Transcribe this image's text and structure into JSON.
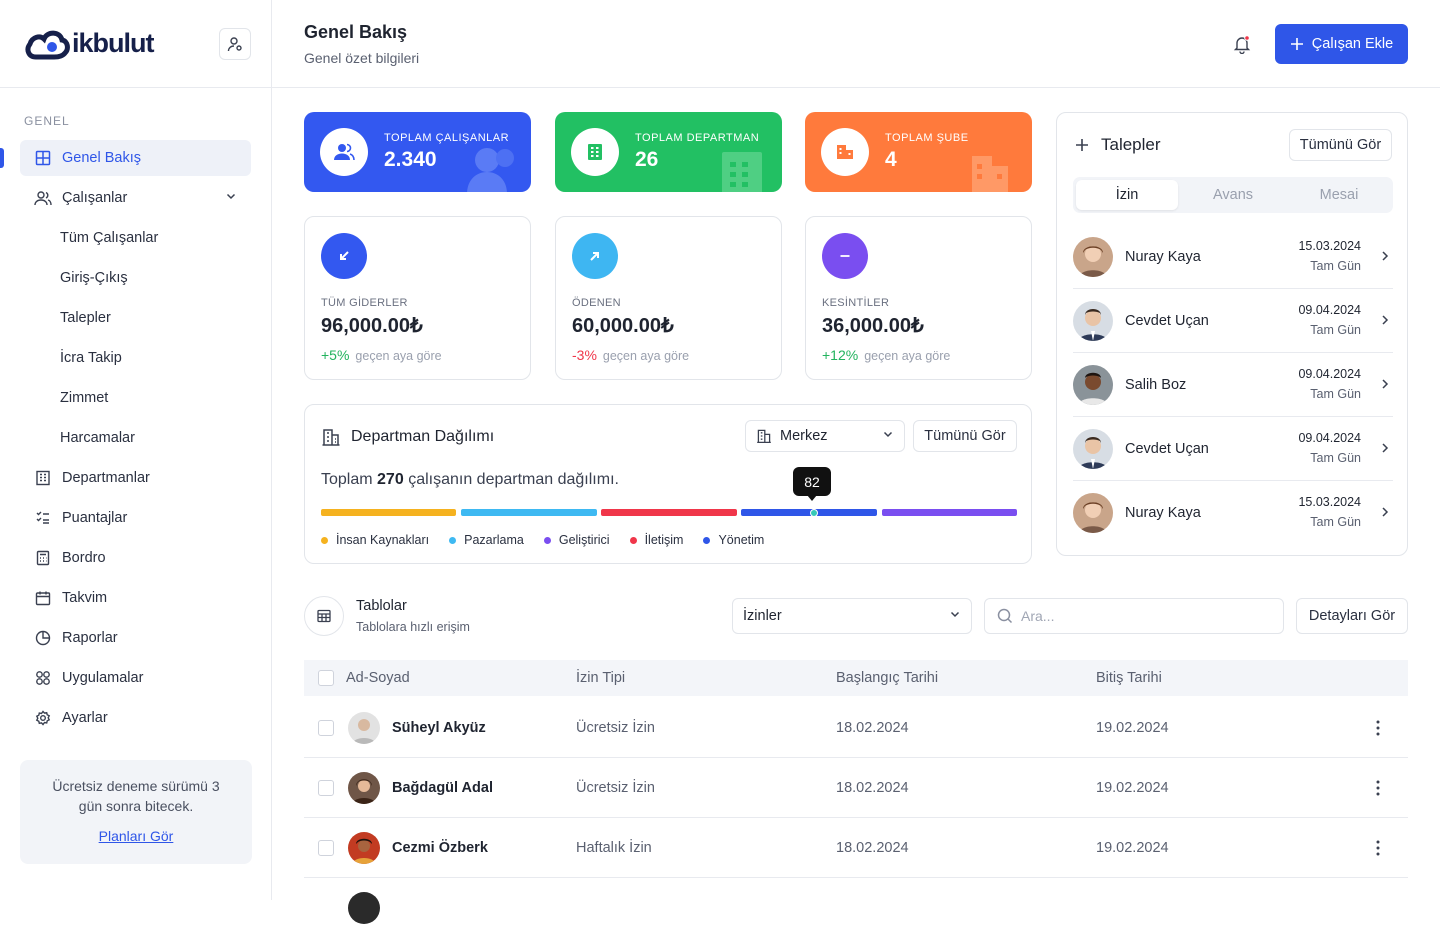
{
  "brand": {
    "name": "ikbulut"
  },
  "sidebar": {
    "section": "GENEL",
    "items": [
      {
        "label": "Genel Bakış"
      },
      {
        "label": "Çalışanlar"
      },
      {
        "label": "Departmanlar"
      },
      {
        "label": "Puantajlar"
      },
      {
        "label": "Bordro"
      },
      {
        "label": "Takvim"
      },
      {
        "label": "Raporlar"
      },
      {
        "label": "Uygulamalar"
      },
      {
        "label": "Ayarlar"
      }
    ],
    "subitems": [
      {
        "label": "Tüm Çalışanlar"
      },
      {
        "label": "Giriş-Çıkış"
      },
      {
        "label": "Talepler"
      },
      {
        "label": "İcra Takip"
      },
      {
        "label": "Zimmet"
      },
      {
        "label": "Harcamalar"
      }
    ],
    "trial": {
      "text": "Ücretsiz deneme sürümü 3 gün sonra bitecek.",
      "link": "Planları Gör"
    }
  },
  "header": {
    "title": "Genel Bakış",
    "subtitle": "Genel özet bilgileri",
    "add_button": "Çalışan Ekle"
  },
  "stats": [
    {
      "label": "TOPLAM ÇALIŞANLAR",
      "value": "2.340",
      "color": "#3358f0"
    },
    {
      "label": "TOPLAM DEPARTMAN",
      "value": "26",
      "color": "#22c063"
    },
    {
      "label": "TOPLAM ŞUBE",
      "value": "4",
      "color": "#ff7a3c"
    }
  ],
  "finance": [
    {
      "label": "TÜM GİDERLER",
      "value": "96,000.00₺",
      "change": "+5%",
      "note": "geçen aya göre",
      "color": "#3358f0"
    },
    {
      "label": "ÖDENEN",
      "value": "60,000.00₺",
      "change": "-3%",
      "note": "geçen aya göre",
      "color": "#3eb6f2"
    },
    {
      "label": "KESİNTİLER",
      "value": "36,000.00₺",
      "change": "+12%",
      "note": "geçen aya göre",
      "color": "#7a4ef0"
    }
  ],
  "dept": {
    "title": "Departman Dağılımı",
    "branch": "Merkez",
    "view_all": "Tümünü Gör",
    "desc_pre": "Toplam",
    "total": "270",
    "desc_post": "çalışanın departman dağılımı.",
    "tooltip": "82",
    "legend": [
      {
        "label": "İnsan Kaynakları",
        "color": "#f5b21f"
      },
      {
        "label": "Pazarlama",
        "color": "#3eb9f2"
      },
      {
        "label": "Geliştirici",
        "color": "#7a4ef0"
      },
      {
        "label": "İletişim",
        "color": "#f0364a"
      },
      {
        "label": "Yönetim",
        "color": "#2f56e8"
      }
    ],
    "bar_colors": [
      "#f5b21f",
      "#3eb9f2",
      "#f0364a",
      "#2f56e8",
      "#7a4ef0"
    ]
  },
  "requests": {
    "title": "Talepler",
    "view_all": "Tümünü Gör",
    "tabs": [
      "İzin",
      "Avans",
      "Mesai"
    ],
    "items": [
      {
        "name": "Nuray Kaya",
        "date": "15.03.2024",
        "kind": "Tam Gün"
      },
      {
        "name": "Cevdet Uçan",
        "date": "09.04.2024",
        "kind": "Tam Gün"
      },
      {
        "name": "Salih Boz",
        "date": "09.04.2024",
        "kind": "Tam Gün"
      },
      {
        "name": "Cevdet Uçan",
        "date": "09.04.2024",
        "kind": "Tam Gün"
      },
      {
        "name": "Nuray Kaya",
        "date": "15.03.2024",
        "kind": "Tam Gün"
      }
    ]
  },
  "tables": {
    "title": "Tablolar",
    "subtitle": "Tablolara hızlı erişim",
    "select": "İzinler",
    "search_placeholder": "Ara...",
    "details": "Detayları Gör",
    "columns": [
      "Ad-Soyad",
      "İzin Tipi",
      "Başlangıç Tarihi",
      "Bitiş Tarihi"
    ],
    "rows": [
      {
        "name": "Süheyl Akyüz",
        "type": "Ücretsiz İzin",
        "start": "18.02.2024",
        "end": "19.02.2024"
      },
      {
        "name": "Bağdagül Adal",
        "type": "Ücretsiz İzin",
        "start": "18.02.2024",
        "end": "19.02.2024"
      },
      {
        "name": "Cezmi Özberk",
        "type": "Haftalık İzin",
        "start": "18.02.2024",
        "end": "19.02.2024"
      }
    ]
  }
}
